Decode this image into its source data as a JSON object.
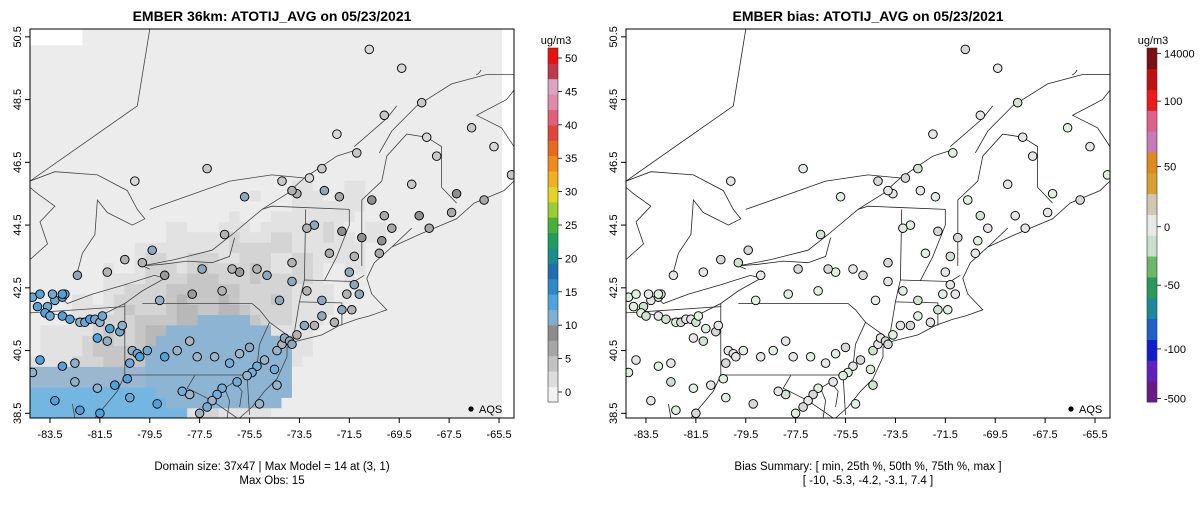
{
  "panels": [
    {
      "title": "EMBER 36km: ATOTIJ_AVG on 05/23/2021",
      "footer_line1": "Domain size: 37x47 | Max Model = 14 at (3, 1)",
      "footer_line2": "Max Obs: 15",
      "legend_marker_label": "AQS"
    },
    {
      "title": "EMBER bias: ATOTIJ_AVG on 05/23/2021",
      "footer_line1": "Bias Summary: [ min, 25th %, 50th %, 75th %, max ]",
      "footer_line2": "[ -10,   -5.3,   -4.2,   -3.1,   7.4 ]",
      "legend_marker_label": "AQS"
    }
  ],
  "axes": {
    "x_ticks": [
      "-83.5",
      "-81.5",
      "-79.5",
      "-77.5",
      "-75.5",
      "-73.5",
      "-71.5",
      "-69.5",
      "-67.5",
      "-65.5"
    ],
    "y_ticks": [
      "38.5",
      "40.5",
      "42.5",
      "44.5",
      "46.5",
      "48.5",
      "50.5"
    ]
  },
  "colorbar_conc": {
    "unit": "ug/m3",
    "ticks": [
      "0",
      "5",
      "10",
      "15",
      "20",
      "25",
      "30",
      "35",
      "40",
      "45",
      "50"
    ],
    "colors": [
      "#f2f2f2",
      "#dcdcdc",
      "#c2c2c2",
      "#a6a6a6",
      "#8c8c8c",
      "#7fb0cf",
      "#4fa3dc",
      "#2f87c8",
      "#1f6fb0",
      "#1a8a8a",
      "#1e9e5e",
      "#47b03a",
      "#9acd32",
      "#e5d222",
      "#f0b020",
      "#ee8a1e",
      "#e56a1e",
      "#e0453a",
      "#e0607a",
      "#e08aa8",
      "#d8a4c0",
      "#c0384a",
      "#e81010"
    ]
  },
  "colorbar_bias": {
    "unit": "ug/m3",
    "ticks": [
      "14000",
      "100",
      "50",
      "0",
      "-50",
      "-100",
      "-500"
    ],
    "colors": [
      "#7a1010",
      "#c01010",
      "#ee1a1a",
      "#e0608a",
      "#c87ab8",
      "#e08a1e",
      "#d8a030",
      "#d0c8b0",
      "#e8e8e8",
      "#c8e0c8",
      "#6ab86a",
      "#2a9a5a",
      "#1a8a9a",
      "#2060c8",
      "#1020d0",
      "#6020c0",
      "#6a1a8a"
    ]
  },
  "data_notes": {
    "domain_size": "37x47",
    "max_model": 14,
    "max_model_cell": "(3, 1)",
    "max_obs": 15
  }
}
